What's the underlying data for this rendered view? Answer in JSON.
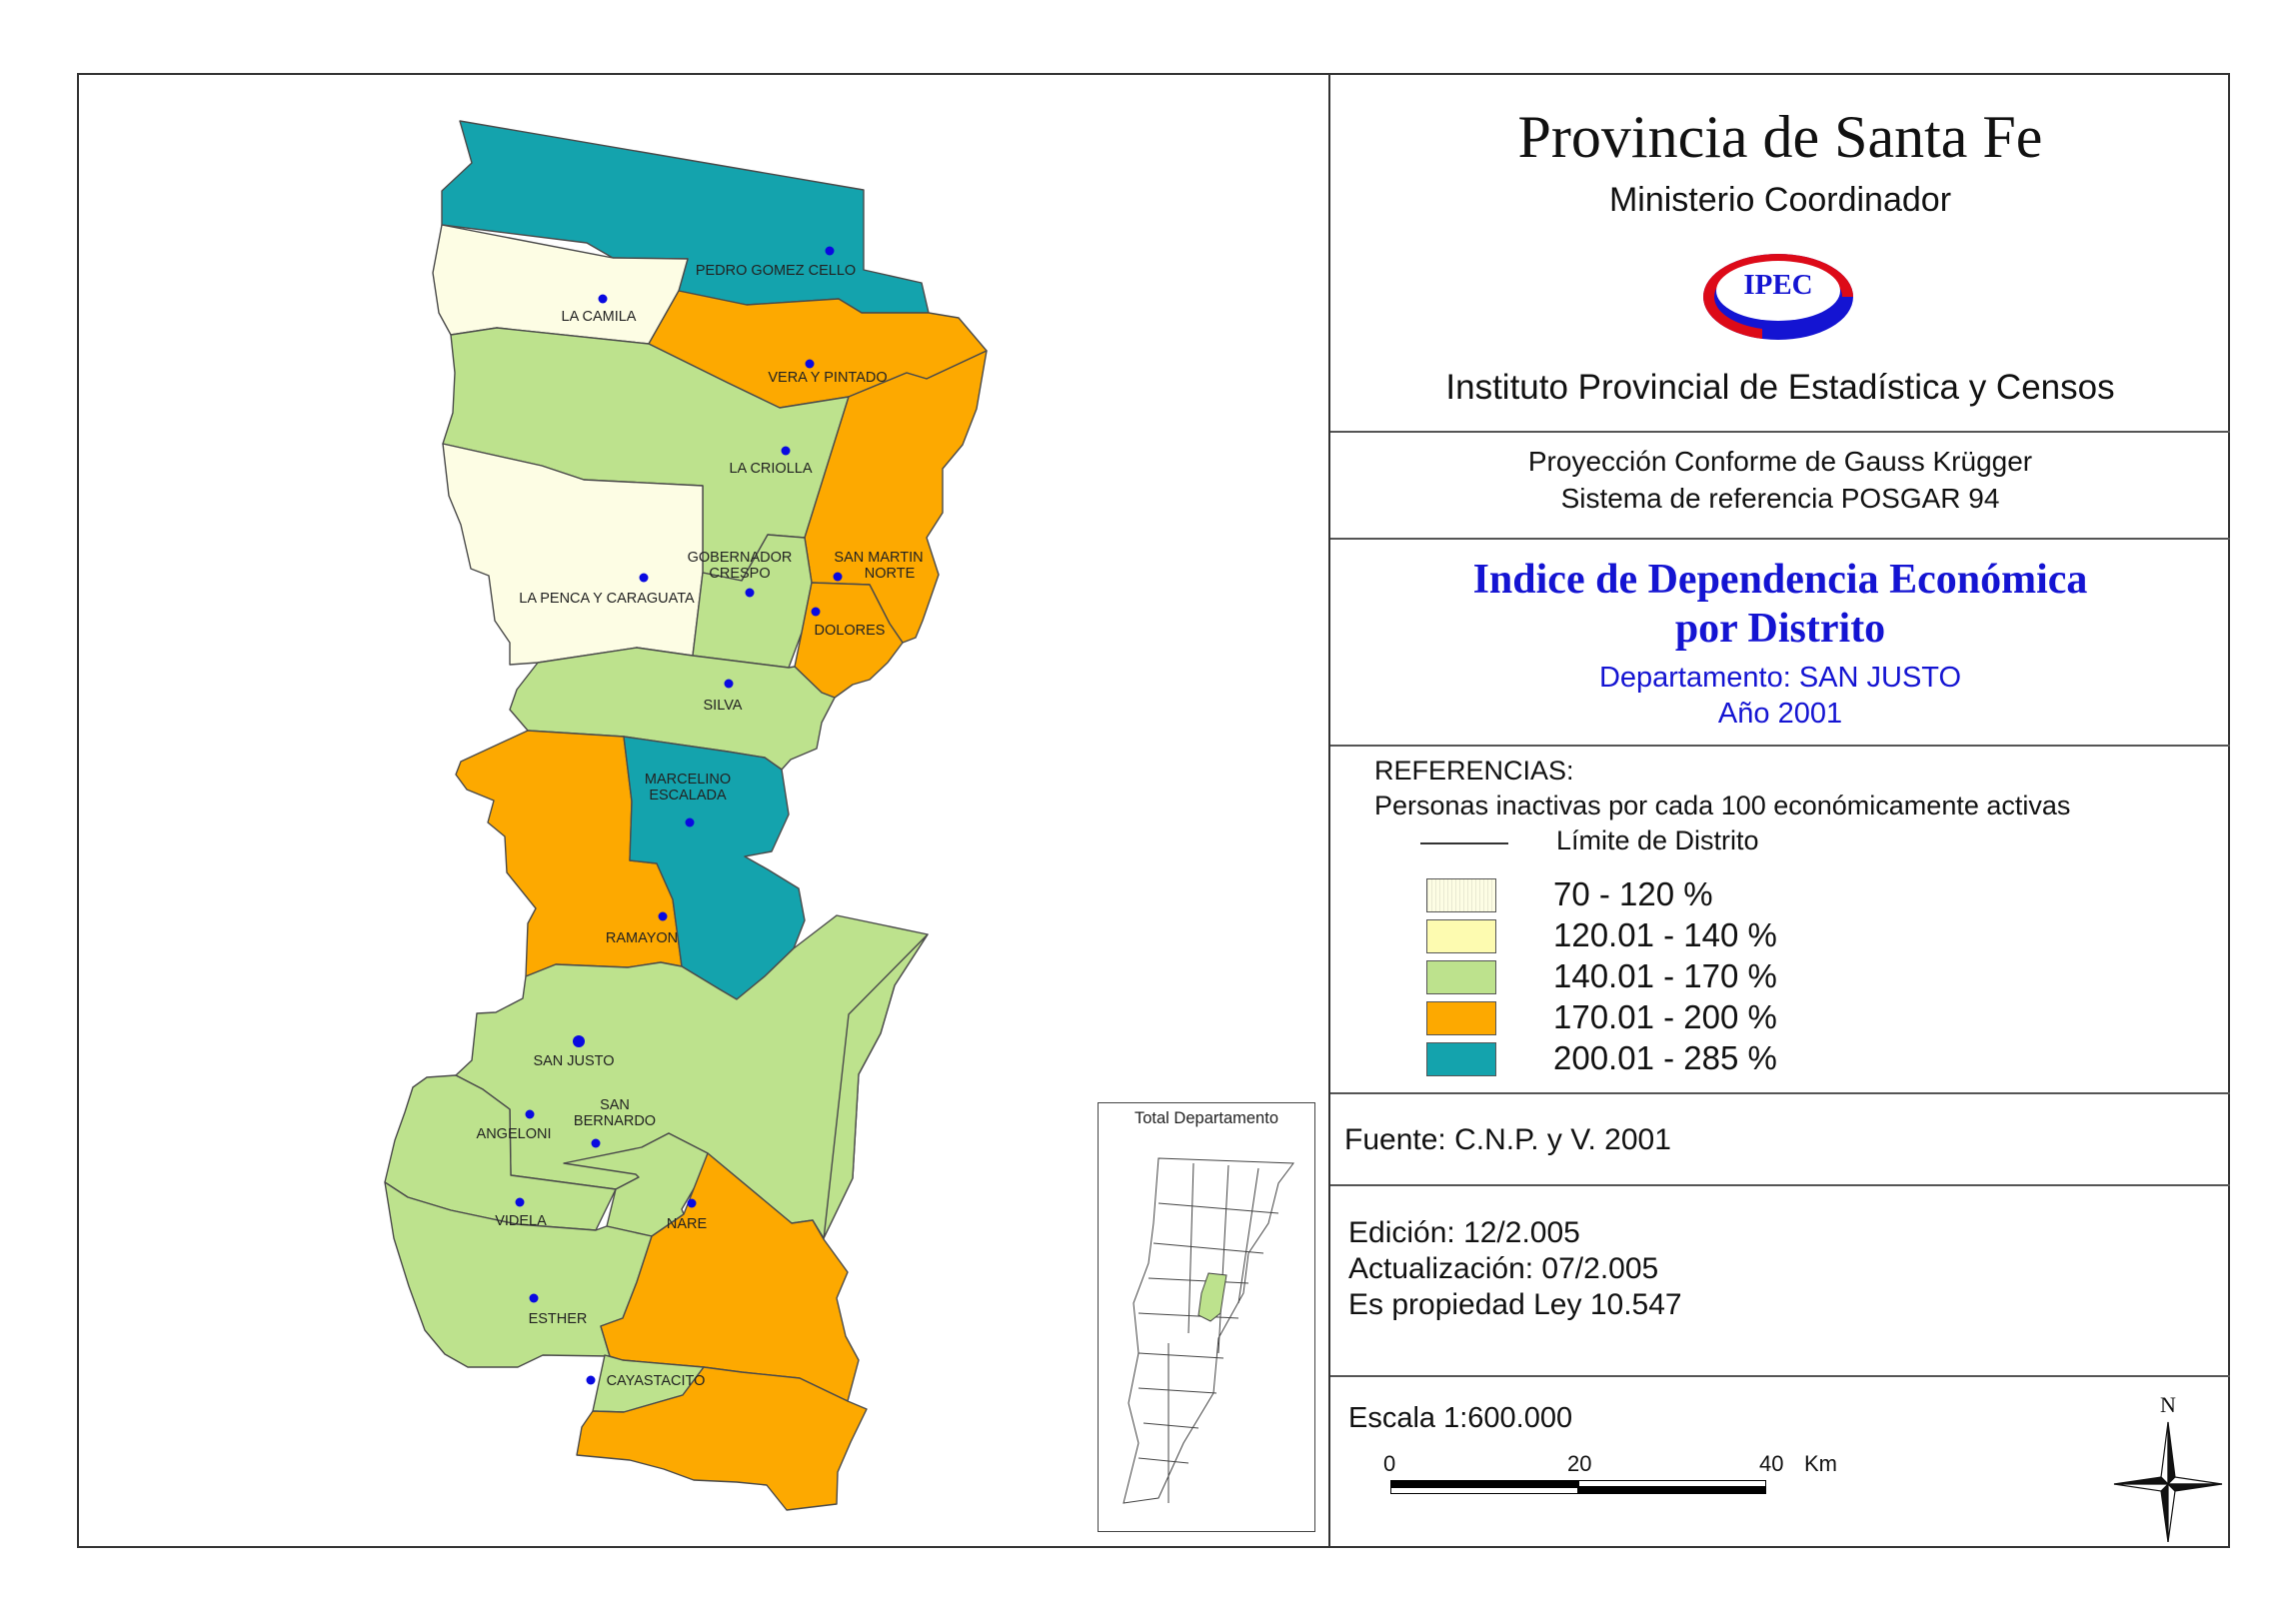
{
  "title": "Provincia de Santa Fe",
  "ministry": "Ministerio Coordinador",
  "logo_text": "IPEC",
  "institute": "Instituto Provincial de Estadística y Censos",
  "projection": {
    "line1": "Proyección Conforme de Gauss Krügger",
    "line2": "Sistema de referencia POSGAR 94"
  },
  "map_title": {
    "line1": "Indice de Dependencia Económica",
    "line2": "por Distrito",
    "department": "Departamento:  SAN JUSTO",
    "year": "Año 2001"
  },
  "references": {
    "heading": "REFERENCIAS:",
    "subtitle": "Personas inactivas por cada 100 económicamente activas",
    "boundary_label": "Límite de  Distrito",
    "classes": [
      {
        "label": "70 - 120 %",
        "color": "#fdfde4"
      },
      {
        "label": "120.01 - 140 %",
        "color": "#fdfbb0"
      },
      {
        "label": "140.01 - 170 %",
        "color": "#bde28d"
      },
      {
        "label": "170.01 - 200 %",
        "color": "#fda900"
      },
      {
        "label": "200.01 - 285 %",
        "color": "#14a3ad"
      }
    ]
  },
  "source": "Fuente:  C.N.P. y V. 2001",
  "edition": {
    "edicion": "Edición:  12/2.005",
    "actualizacion": "Actualización:  07/2.005",
    "propiedad": "Es propiedad Ley 10.547"
  },
  "scale": {
    "label": "Escala 1:600.000",
    "ticks": [
      "0",
      "20",
      "40"
    ],
    "unit": "Km"
  },
  "north_label": "N",
  "inset_title": "Total Departamento",
  "districts": [
    {
      "name": "PEDRO GOMEZ CELLO",
      "class": "200.01 - 285 %"
    },
    {
      "name": "LA CAMILA",
      "class": "70 - 120 %"
    },
    {
      "name": "VERA Y PINTADO",
      "class": "170.01 - 200 %"
    },
    {
      "name": "LA CRIOLLA",
      "class": "140.01 - 170 %"
    },
    {
      "name": "LA PENCA Y CARAGUATA",
      "class": "70 - 120 %"
    },
    {
      "name": "GOBERNADOR",
      "name2": "CRESPO",
      "class": "140.01 - 170 %"
    },
    {
      "name": "SAN MARTIN",
      "name2": "NORTE",
      "class": "170.01 - 200 %"
    },
    {
      "name": "DOLORES",
      "class": "170.01 - 200 %"
    },
    {
      "name": "SILVA",
      "class": "140.01 - 170 %"
    },
    {
      "name": "MARCELINO",
      "name2": "ESCALADA",
      "class": "200.01 - 285 %"
    },
    {
      "name": "RAMAYON",
      "class": "170.01 - 200 %"
    },
    {
      "name": "SAN JUSTO",
      "class": "140.01 - 170 %"
    },
    {
      "name": "ANGELONI",
      "class": "140.01 - 170 %"
    },
    {
      "name": "SAN",
      "name2": "BERNARDO",
      "class": "140.01 - 170 %"
    },
    {
      "name": "VIDELA",
      "class": "140.01 - 170 %"
    },
    {
      "name": "NARE",
      "class": "170.01 - 200 %"
    },
    {
      "name": "ESTHER",
      "class": "140.01 - 170 %"
    },
    {
      "name": "CAYASTACITO",
      "class": "170.01 - 200 %"
    }
  ]
}
